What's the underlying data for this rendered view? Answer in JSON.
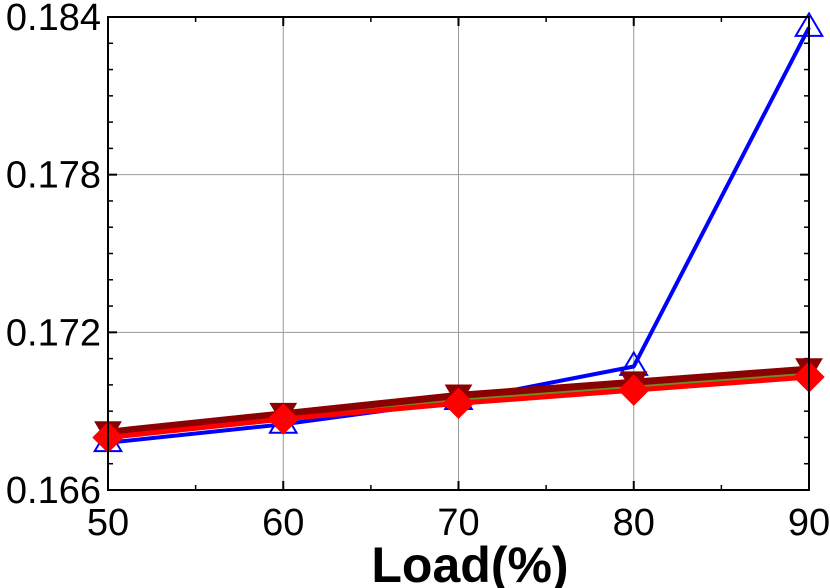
{
  "chart_data": {
    "type": "line",
    "title": "",
    "xlabel": "Load(%)",
    "ylabel": "",
    "x": [
      50,
      60,
      70,
      80,
      90
    ],
    "xlim": [
      50,
      90
    ],
    "ylim": [
      0.166,
      0.184
    ],
    "xticks": [
      "50",
      "60",
      "70",
      "80",
      "90"
    ],
    "yticks": [
      "0.166",
      "0.172",
      "0.178",
      "0.184"
    ],
    "grid": true,
    "series": [
      {
        "color": "#0000ff",
        "marker": "triangle-up-open",
        "values": [
          0.1678,
          0.1685,
          0.1694,
          0.1707,
          0.1836
        ]
      },
      {
        "color": "#6b8e23",
        "marker": "none",
        "values": [
          0.168,
          0.1687,
          0.1694,
          0.1699,
          0.1704
        ]
      },
      {
        "color": "#8b0000",
        "marker": "triangle-down-filled",
        "values": [
          0.1682,
          0.1689,
          0.1696,
          0.1701,
          0.1706
        ]
      },
      {
        "color": "#ff0000",
        "marker": "diamond-filled",
        "values": [
          0.168,
          0.1687,
          0.1693,
          0.1698,
          0.1703
        ]
      }
    ]
  }
}
